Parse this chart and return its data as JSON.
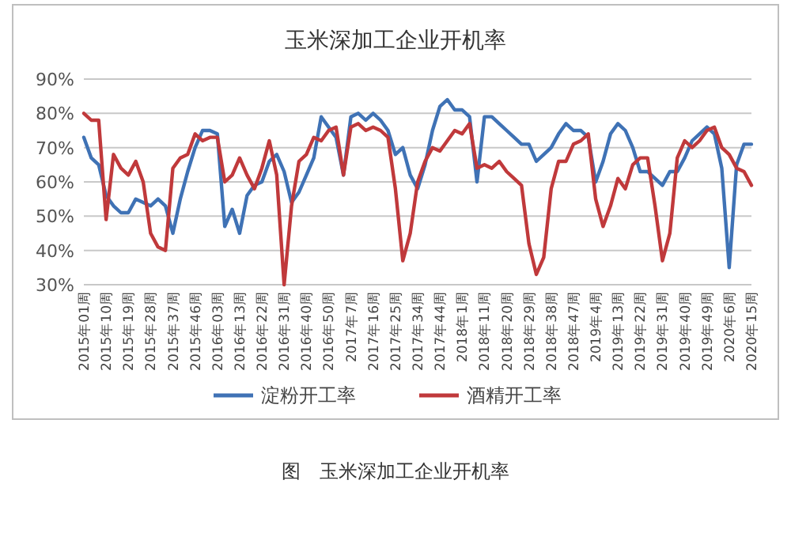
{
  "chart_data": {
    "type": "line",
    "title": "玉米深加工企业开机率",
    "categories": [
      "2015年01周",
      null,
      null,
      "2015年10周",
      null,
      null,
      "2015年19周",
      null,
      null,
      "2015年28周",
      null,
      null,
      "2015年37周",
      null,
      null,
      "2015年46周",
      null,
      null,
      "2016年03周",
      null,
      null,
      "2016年13周",
      null,
      null,
      "2016年22周",
      null,
      null,
      "2016年31周",
      null,
      null,
      "2016年40周",
      null,
      null,
      "2016年50周",
      null,
      null,
      "2017年7周",
      null,
      null,
      "2017年16周",
      null,
      null,
      "2017年25周",
      null,
      null,
      "2017年34周",
      null,
      null,
      "2017年44周",
      null,
      null,
      "2018年1周",
      null,
      null,
      "2018年11周",
      null,
      null,
      "2018年20周",
      null,
      null,
      "2018年29周",
      null,
      null,
      "2018年38周",
      null,
      null,
      "2018年47周",
      null,
      null,
      "2019年4周",
      null,
      null,
      "2019年13周",
      null,
      null,
      "2019年22周",
      null,
      null,
      "2019年31周",
      null,
      null,
      "2019年40周",
      null,
      null,
      "2019年49周",
      null,
      null,
      "2020年6周",
      null,
      null,
      "2020年15周"
    ],
    "series": [
      {
        "name": "淀粉开工率",
        "color": "#3f72b5",
        "values": [
          73,
          67,
          65,
          56,
          53,
          51,
          51,
          55,
          54,
          53,
          55,
          53,
          45,
          55,
          63,
          70,
          75,
          75,
          74,
          47,
          52,
          45,
          56,
          59,
          60,
          66,
          68,
          63,
          54,
          57,
          62,
          67,
          79,
          76,
          73,
          62,
          79,
          80,
          78,
          80,
          78,
          75,
          68,
          70,
          62,
          58,
          65,
          75,
          82,
          84,
          81,
          81,
          79,
          60,
          79,
          79,
          77,
          75,
          73,
          71,
          71,
          66,
          68,
          70,
          74,
          77,
          75,
          75,
          73,
          60,
          66,
          74,
          77,
          75,
          70,
          63,
          63,
          61,
          59,
          63,
          63,
          67,
          72,
          74,
          76,
          74,
          64,
          35,
          65,
          71,
          71
        ]
      },
      {
        "name": "酒精开工率",
        "color": "#c0393b",
        "values": [
          80,
          78,
          78,
          49,
          68,
          64,
          62,
          66,
          60,
          45,
          41,
          40,
          64,
          67,
          68,
          74,
          72,
          73,
          73,
          60,
          62,
          67,
          62,
          58,
          64,
          72,
          62,
          30,
          53,
          66,
          68,
          73,
          72,
          75,
          76,
          62,
          76,
          77,
          75,
          76,
          75,
          73,
          58,
          37,
          45,
          60,
          66,
          70,
          69,
          72,
          75,
          74,
          77,
          64,
          65,
          64,
          66,
          63,
          61,
          59,
          42,
          33,
          38,
          58,
          66,
          66,
          71,
          72,
          74,
          55,
          47,
          53,
          61,
          58,
          65,
          67,
          67,
          53,
          37,
          45,
          67,
          72,
          70,
          72,
          75,
          76,
          70,
          68,
          64,
          63,
          59
        ]
      }
    ],
    "ylim": [
      30,
      90
    ],
    "yticks": [
      {
        "value": 30,
        "label": "30%"
      },
      {
        "value": 40,
        "label": "40%"
      },
      {
        "value": 50,
        "label": "50%"
      },
      {
        "value": 60,
        "label": "60%"
      },
      {
        "value": 70,
        "label": "70%"
      },
      {
        "value": 80,
        "label": "80%"
      },
      {
        "value": 90,
        "label": "90%"
      }
    ],
    "grid": "y",
    "legend": "bottom",
    "line_style": "solid",
    "marker": "none",
    "annotations": [
      "图　玉米深加工企业开机率"
    ]
  }
}
